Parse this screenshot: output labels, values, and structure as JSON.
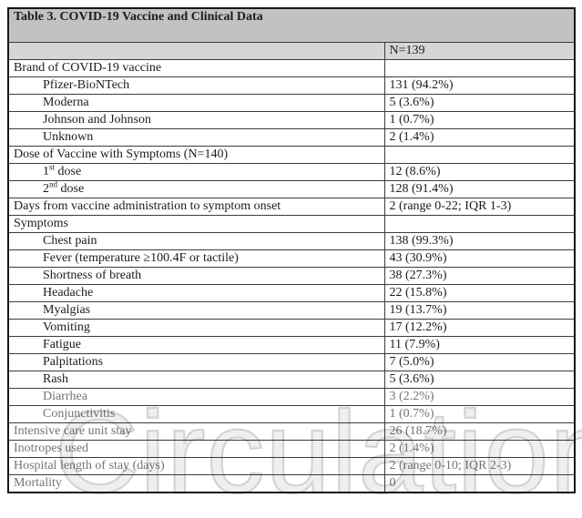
{
  "document": {
    "watermark_text": "Circulation"
  },
  "table": {
    "title": "Table 3. COVID-19 Vaccine and Clinical Data",
    "column_header": "N=139",
    "rows": [
      {
        "label": "Brand of COVID-19 vaccine",
        "value": "",
        "indent": false,
        "faded": false
      },
      {
        "label": "Pfizer-BioNTech",
        "value": "131 (94.2%)",
        "indent": true,
        "faded": false
      },
      {
        "label": "Moderna",
        "value": "5 (3.6%)",
        "indent": true,
        "faded": false
      },
      {
        "label": "Johnson and Johnson",
        "value": "1 (0.7%)",
        "indent": true,
        "faded": false
      },
      {
        "label": "Unknown",
        "value": "2 (1.4%)",
        "indent": true,
        "faded": false
      },
      {
        "label": "Dose of Vaccine with Symptoms (N=140)",
        "value": "",
        "indent": false,
        "faded": false
      },
      {
        "label": "1st dose",
        "label_parts": {
          "pre": "1",
          "sup": "st",
          "post": " dose"
        },
        "value": "12 (8.6%)",
        "indent": true,
        "faded": false
      },
      {
        "label": "2nd dose",
        "label_parts": {
          "pre": "2",
          "sup": "nd",
          "post": " dose"
        },
        "value": "128 (91.4%)",
        "indent": true,
        "faded": false
      },
      {
        "label": "Days from vaccine administration to symptom onset",
        "value": "2 (range 0-22; IQR 1-3)",
        "indent": false,
        "faded": false
      },
      {
        "label": "Symptoms",
        "value": "",
        "indent": false,
        "faded": false
      },
      {
        "label": "Chest pain",
        "value": "138 (99.3%)",
        "indent": true,
        "faded": false
      },
      {
        "label": "Fever (temperature ≥100.4F or tactile)",
        "value": "43 (30.9%)",
        "indent": true,
        "faded": false
      },
      {
        "label": "Shortness of breath",
        "value": "38 (27.3%)",
        "indent": true,
        "faded": false
      },
      {
        "label": "Headache",
        "value": "22 (15.8%)",
        "indent": true,
        "faded": false
      },
      {
        "label": "Myalgias",
        "value": "19 (13.7%)",
        "indent": true,
        "faded": false
      },
      {
        "label": "Vomiting",
        "value": "17 (12.2%)",
        "indent": true,
        "faded": false
      },
      {
        "label": "Fatigue",
        "value": "11 (7.9%)",
        "indent": true,
        "faded": false
      },
      {
        "label": "Palpitations",
        "value": "7 (5.0%)",
        "indent": true,
        "faded": false
      },
      {
        "label": "Rash",
        "value": "5 (3.6%)",
        "indent": true,
        "faded": false
      },
      {
        "label": "Diarrhea",
        "value": "3 (2.2%)",
        "indent": true,
        "faded": true
      },
      {
        "label": "Conjunctivitis",
        "value": "1 (0.7%)",
        "indent": true,
        "faded": true
      },
      {
        "label": "Intensive care unit stay",
        "value": "26 (18.7%)",
        "indent": false,
        "faded": true
      },
      {
        "label": "Inotropes used",
        "value": "2 (1.4%)",
        "indent": false,
        "faded": true
      },
      {
        "label": "Hospital length of stay (days)",
        "value": "2 (range 0-10; IQR 2-3)",
        "indent": false,
        "faded": true
      },
      {
        "label": "Mortality",
        "value": "0",
        "indent": false,
        "faded": true
      }
    ]
  },
  "colors": {
    "title_bg": "#c2c2c2",
    "header_bg": "#d6d6d6",
    "border_outer": "#161616",
    "border_inner": "#3c3c3c",
    "text": "#1c1c1c",
    "faded_text": "#747474",
    "watermark_fill": "#efefef",
    "watermark_stroke": "#d4d4d4"
  }
}
